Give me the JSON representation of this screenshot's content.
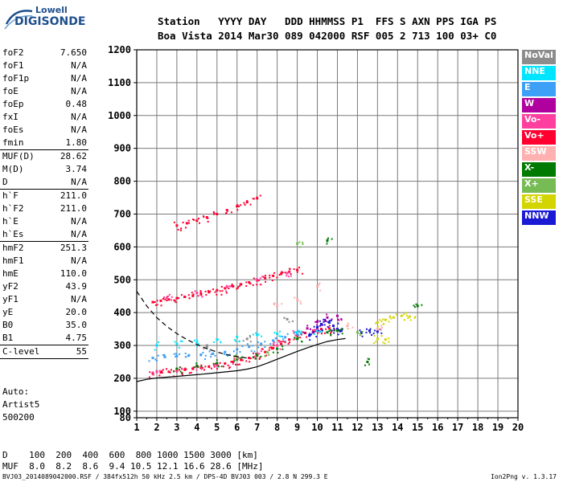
{
  "logo": {
    "line1": "Lowell",
    "line2": "DIGISONDE"
  },
  "header": {
    "line1": "Station   YYYY DAY   DDD HHMMSS P1  FFS S AXN PPS IGA PS",
    "line2": "Boa Vista 2014 Mar30 089 042000 RSF 005 2 713 100 03+ C0"
  },
  "params": [
    {
      "label": "foF2",
      "value": "7.650",
      "sep": false
    },
    {
      "label": "foF1",
      "value": "N/A",
      "sep": false
    },
    {
      "label": "foF1p",
      "value": "N/A",
      "sep": false
    },
    {
      "label": "foE",
      "value": "N/A",
      "sep": false
    },
    {
      "label": "foEp",
      "value": "0.48",
      "sep": false
    },
    {
      "label": "fxI",
      "value": "N/A",
      "sep": false
    },
    {
      "label": "foEs",
      "value": "N/A",
      "sep": false
    },
    {
      "label": "fmin",
      "value": "1.80",
      "sep": true
    },
    {
      "label": "MUF(D)",
      "value": "28.62",
      "sep": false
    },
    {
      "label": "M(D)",
      "value": "3.74",
      "sep": false
    },
    {
      "label": "D",
      "value": "N/A",
      "sep": true
    },
    {
      "label": "h`F",
      "value": "211.0",
      "sep": false
    },
    {
      "label": "h`F2",
      "value": "211.0",
      "sep": false
    },
    {
      "label": "h`E",
      "value": "N/A",
      "sep": false
    },
    {
      "label": "h`Es",
      "value": "N/A",
      "sep": true
    },
    {
      "label": "hmF2",
      "value": "251.3",
      "sep": false
    },
    {
      "label": "hmF1",
      "value": "N/A",
      "sep": false
    },
    {
      "label": "hmE",
      "value": "110.0",
      "sep": false
    },
    {
      "label": "yF2",
      "value": "43.9",
      "sep": false
    },
    {
      "label": "yF1",
      "value": "N/A",
      "sep": false
    },
    {
      "label": "yE",
      "value": "20.0",
      "sep": false
    },
    {
      "label": "B0",
      "value": "35.0",
      "sep": false
    },
    {
      "label": "B1",
      "value": "4.75",
      "sep": true
    },
    {
      "label": "C-level",
      "value": "55",
      "sep": true
    }
  ],
  "extra": {
    "l1": "Auto:",
    "l2": "Artist5",
    "l3": "500200"
  },
  "legend": [
    {
      "label": "NoVal",
      "color": "#8c8c8c"
    },
    {
      "label": "NNE",
      "color": "#00e5ff"
    },
    {
      "label": "E",
      "color": "#3d9ff5"
    },
    {
      "label": "W",
      "color": "#b0009e"
    },
    {
      "label": "Vo-",
      "color": "#ff3fa0"
    },
    {
      "label": "Vo+",
      "color": "#ff0030"
    },
    {
      "label": "SSW",
      "color": "#ffb0b0"
    },
    {
      "label": "X-",
      "color": "#007a00"
    },
    {
      "label": "X+",
      "color": "#77bb55"
    },
    {
      "label": "SSE",
      "color": "#d4d400"
    },
    {
      "label": "NNW",
      "color": "#1a1ad4"
    }
  ],
  "footer": {
    "d_line": "D    100  200  400  600  800 1000 1500 3000 [km]",
    "m_line": "MUF  8.0  8.2  8.6  9.4 10.5 12.1 16.6 28.6 [MHz]",
    "source": "BVJ03_2014089042000.RSF / 384fx512h 50 kHz 2.5 km / DPS-4D BVJ03 003 / 2.8 N 299.3 E",
    "version": "Ion2Png v. 1.3.17"
  },
  "chart_data": {
    "type": "scatter",
    "title": "",
    "xlabel": "",
    "ylabel": "",
    "xlim": [
      1,
      20
    ],
    "ylim": [
      80,
      1200
    ],
    "x_ticks": [
      1,
      2,
      3,
      4,
      5,
      6,
      7,
      8,
      9,
      10,
      11,
      12,
      13,
      14,
      15,
      16,
      17,
      18,
      19,
      20
    ],
    "y_ticks": [
      80,
      100,
      200,
      300,
      400,
      500,
      600,
      700,
      800,
      900,
      1000,
      1100,
      1200
    ],
    "grid": true,
    "legend_position": "right",
    "series": [
      {
        "name": "Vo+",
        "color": "#ff0030",
        "points": [
          [
            1.8,
            215
          ],
          [
            2.2,
            218
          ],
          [
            2.6,
            220
          ],
          [
            3.0,
            223
          ],
          [
            3.4,
            226
          ],
          [
            3.8,
            229
          ],
          [
            4.2,
            232
          ],
          [
            4.6,
            236
          ],
          [
            5.0,
            240
          ],
          [
            5.4,
            245
          ],
          [
            5.8,
            250
          ],
          [
            6.2,
            256
          ],
          [
            6.6,
            262
          ],
          [
            7.0,
            270
          ],
          [
            7.4,
            280
          ],
          [
            7.8,
            292
          ],
          [
            8.2,
            305
          ],
          [
            8.6,
            318
          ],
          [
            9.0,
            330
          ],
          [
            9.4,
            338
          ],
          [
            9.8,
            345
          ],
          [
            10.2,
            350
          ],
          [
            10.6,
            352
          ],
          [
            1.8,
            432
          ],
          [
            2.2,
            436
          ],
          [
            2.6,
            440
          ],
          [
            3.0,
            444
          ],
          [
            3.4,
            448
          ],
          [
            3.8,
            452
          ],
          [
            4.2,
            457
          ],
          [
            4.6,
            462
          ],
          [
            5.0,
            468
          ],
          [
            5.4,
            474
          ],
          [
            5.8,
            480
          ],
          [
            6.2,
            486
          ],
          [
            6.6,
            492
          ],
          [
            7.0,
            498
          ],
          [
            7.4,
            505
          ],
          [
            7.8,
            512
          ],
          [
            8.2,
            518
          ],
          [
            8.6,
            524
          ],
          [
            9.0,
            530
          ],
          [
            3.0,
            665
          ],
          [
            3.5,
            672
          ],
          [
            4.0,
            680
          ],
          [
            4.5,
            690
          ],
          [
            5.0,
            700
          ],
          [
            5.5,
            712
          ],
          [
            6.0,
            724
          ],
          [
            6.5,
            736
          ],
          [
            7.0,
            748
          ]
        ]
      },
      {
        "name": "Vo-",
        "color": "#ff3fa0",
        "points": [
          [
            2.0,
            221
          ],
          [
            3.0,
            226
          ],
          [
            4.0,
            235
          ],
          [
            5.0,
            244
          ],
          [
            6.0,
            258
          ],
          [
            7.0,
            275
          ],
          [
            8.0,
            300
          ],
          [
            9.0,
            335
          ],
          [
            10.0,
            350
          ],
          [
            2.5,
            445
          ],
          [
            4.0,
            460
          ],
          [
            5.5,
            478
          ],
          [
            7.0,
            500
          ],
          [
            8.5,
            520
          ]
        ]
      },
      {
        "name": "E",
        "color": "#3d9ff5",
        "points": [
          [
            1.8,
            262
          ],
          [
            2.4,
            265
          ],
          [
            3.0,
            268
          ],
          [
            3.6,
            270
          ],
          [
            4.2,
            272
          ],
          [
            4.8,
            275
          ],
          [
            5.4,
            280
          ],
          [
            6.0,
            288
          ],
          [
            6.6,
            296
          ],
          [
            7.2,
            305
          ],
          [
            7.8,
            315
          ],
          [
            8.4,
            325
          ],
          [
            9.0,
            334
          ]
        ]
      },
      {
        "name": "NNE",
        "color": "#00e5ff",
        "points": [
          [
            2.0,
            300
          ],
          [
            3.0,
            305
          ],
          [
            4.0,
            310
          ],
          [
            5.0,
            318
          ],
          [
            6.0,
            326
          ],
          [
            7.0,
            332
          ],
          [
            8.0,
            336
          ],
          [
            9.0,
            340
          ],
          [
            10.0,
            344
          ]
        ]
      },
      {
        "name": "NNW",
        "color": "#1a1ad4",
        "points": [
          [
            9.6,
            330
          ],
          [
            9.8,
            340
          ],
          [
            10.0,
            355
          ],
          [
            10.2,
            365
          ],
          [
            10.4,
            375
          ],
          [
            10.6,
            370
          ],
          [
            10.8,
            360
          ],
          [
            11.0,
            350
          ],
          [
            11.2,
            345
          ],
          [
            12.2,
            340
          ],
          [
            12.6,
            345
          ],
          [
            13.0,
            342
          ]
        ]
      },
      {
        "name": "W",
        "color": "#b0009e",
        "points": [
          [
            9.5,
            352
          ],
          [
            10.0,
            372
          ],
          [
            10.5,
            385
          ],
          [
            11.0,
            390
          ]
        ]
      },
      {
        "name": "SSE",
        "color": "#d4d400",
        "points": [
          [
            13.0,
            370
          ],
          [
            13.4,
            378
          ],
          [
            13.8,
            385
          ],
          [
            14.2,
            390
          ],
          [
            14.6,
            388
          ],
          [
            13.0,
            320
          ],
          [
            13.4,
            318
          ]
        ]
      },
      {
        "name": "X-",
        "color": "#007a00",
        "points": [
          [
            3.0,
            229
          ],
          [
            4.0,
            238
          ],
          [
            5.0,
            246
          ],
          [
            6.0,
            258
          ],
          [
            7.0,
            270
          ],
          [
            8.0,
            290
          ],
          [
            9.0,
            320
          ],
          [
            10.5,
            340
          ],
          [
            11.0,
            345
          ],
          [
            10.5,
            620
          ],
          [
            12.5,
            250
          ],
          [
            15.0,
            420
          ]
        ]
      },
      {
        "name": "X+",
        "color": "#77bb55",
        "points": [
          [
            6.0,
            262
          ],
          [
            7.5,
            280
          ],
          [
            9.0,
            610
          ],
          [
            12.0,
            340
          ]
        ]
      },
      {
        "name": "SSW",
        "color": "#ffb0b0",
        "points": [
          [
            8.0,
            420
          ],
          [
            9.0,
            440
          ],
          [
            10.0,
            480
          ],
          [
            11.5,
            360
          ],
          [
            13.0,
            350
          ]
        ]
      },
      {
        "name": "NoVal",
        "color": "#8c8c8c",
        "points": [
          [
            4.5,
            300
          ],
          [
            6.5,
            320
          ],
          [
            8.5,
            380
          ]
        ]
      }
    ],
    "curves": [
      {
        "style": "dashed",
        "points": [
          [
            1.0,
            465
          ],
          [
            1.5,
            420
          ],
          [
            2.0,
            385
          ],
          [
            2.5,
            358
          ],
          [
            3.0,
            336
          ],
          [
            3.5,
            318
          ],
          [
            4.0,
            303
          ],
          [
            4.5,
            290
          ],
          [
            5.0,
            280
          ],
          [
            5.5,
            272
          ],
          [
            6.0,
            266
          ],
          [
            6.5,
            262
          ]
        ]
      },
      {
        "style": "solid",
        "points": [
          [
            1.0,
            190
          ],
          [
            1.5,
            197
          ],
          [
            2.0,
            201
          ],
          [
            3.0,
            206
          ],
          [
            4.0,
            211
          ],
          [
            5.0,
            217
          ],
          [
            6.0,
            223
          ],
          [
            6.5,
            228
          ],
          [
            7.0,
            235
          ],
          [
            7.5,
            246
          ],
          [
            8.0,
            258
          ],
          [
            8.5,
            270
          ],
          [
            9.0,
            282
          ],
          [
            9.5,
            293
          ],
          [
            10.0,
            303
          ],
          [
            10.5,
            312
          ],
          [
            11.0,
            318
          ],
          [
            11.4,
            321
          ]
        ]
      }
    ]
  }
}
